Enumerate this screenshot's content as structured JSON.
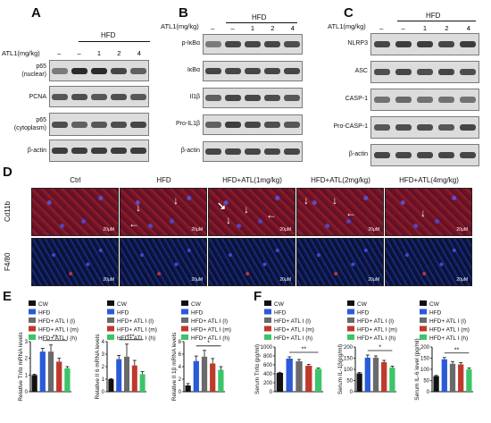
{
  "panels": {
    "a": "A",
    "b": "B",
    "c": "C",
    "d": "D",
    "e": "E",
    "f": "F"
  },
  "hfd": "HFD",
  "atl1_label": "ATL1(mg/kg)",
  "atl1_label_spaced": "ATL1(mg/kg)",
  "lanes": [
    "–",
    "–",
    "1",
    "2",
    "4"
  ],
  "blot_a": {
    "rows": [
      "p65\n(nuclear)",
      "PCNA",
      "p65\n(cytoplasm)",
      "β-actin"
    ],
    "row_1a": "p65",
    "row_1b": "(nuclear)",
    "row_2": "PCNA",
    "row_3a": "p65",
    "row_3b": "(cytoplasm)",
    "row_4": "β-actin"
  },
  "blot_b": {
    "rows": [
      "p-IκBα",
      "IκBα",
      "Il1β",
      "Pro-IL1β",
      "β-actin"
    ]
  },
  "blot_c": {
    "rows": [
      "NLRP3",
      "ASC",
      "CASP-1",
      "Pro-CASP-1",
      "β-actin"
    ]
  },
  "micro": {
    "cols": [
      "Ctrl",
      "HFD",
      "HFD+ATL(1mg/kg)",
      "HFD+ATL(2mg/kg)",
      "HFD+ATL(4mg/kg)"
    ],
    "rows": [
      "Cd11b",
      "F4/80"
    ],
    "scale": "20μM",
    "arrow_icon": "arrow-icon"
  },
  "legend": [
    "CW",
    "HFD",
    "HFD+ ATL I (l)",
    "HFD+ ATL I (m)",
    "HFD+ ATL I (h)"
  ],
  "colors": {
    "series": [
      "#111111",
      "#2a5bd7",
      "#6a6a6a",
      "#c0392b",
      "#3bc46a"
    ],
    "cd11b_bg": "#6b1828",
    "f480_bg": "#0e1a4a"
  },
  "chart_data": [
    {
      "type": "bar",
      "panel": "E",
      "ylabel": "Relative Tnfα mRNA levels",
      "ylim": [
        0,
        3
      ],
      "yticks": [
        "0",
        "1",
        "2",
        "3"
      ],
      "categories": [
        "CW",
        "HFD",
        "HFD+ ATL I (l)",
        "HFD+ ATL I (m)",
        "HFD+ ATL I (h)"
      ],
      "values": [
        1.0,
        2.4,
        2.4,
        1.8,
        1.4
      ],
      "errors": [
        0.05,
        0.2,
        0.4,
        0.2,
        0.1
      ],
      "significance": "**"
    },
    {
      "type": "bar",
      "panel": "E",
      "ylabel": "Relative Il 6 mRNA levels",
      "ylim": [
        0,
        4
      ],
      "yticks": [
        "0",
        "1",
        "2",
        "3",
        "4"
      ],
      "categories": [
        "CW",
        "HFD",
        "HFD+ ATL I (l)",
        "HFD+ ATL I (m)",
        "HFD+ ATL I (h)"
      ],
      "values": [
        1.0,
        2.6,
        2.8,
        2.1,
        1.4
      ],
      "errors": [
        0.05,
        0.3,
        1.0,
        0.4,
        0.2
      ],
      "significance": "***"
    },
    {
      "type": "bar",
      "panel": "E",
      "ylabel": "Relative Il 1β mRNA levels",
      "ylim": [
        0,
        8
      ],
      "yticks": [
        "0",
        "2",
        "4",
        "6",
        "8"
      ],
      "categories": [
        "CW",
        "HFD",
        "HFD+ ATL I (l)",
        "HFD+ ATL I (m)",
        "HFD+ ATL I (h)"
      ],
      "values": [
        1.0,
        4.9,
        5.6,
        4.5,
        3.5
      ],
      "errors": [
        0.3,
        0.8,
        1.0,
        0.8,
        0.5
      ],
      "significance": "*"
    },
    {
      "type": "bar",
      "panel": "F",
      "ylabel": "Serum Tnfα (pg/ml)",
      "ylim": [
        0,
        1000
      ],
      "yticks": [
        "0",
        "200",
        "400",
        "600",
        "800",
        "1000"
      ],
      "categories": [
        "CW",
        "HFD",
        "HFD+ ATL I (l)",
        "HFD+ ATL I (m)",
        "HFD+ ATL I (h)"
      ],
      "values": [
        420,
        740,
        680,
        580,
        510
      ],
      "errors": [
        15,
        40,
        40,
        30,
        20
      ],
      "significance": "**"
    },
    {
      "type": "bar",
      "panel": "F",
      "ylabel": "Serum IL-1β(pg/ml)",
      "ylim": [
        0,
        200
      ],
      "yticks": [
        "0",
        "50",
        "100",
        "150",
        "200"
      ],
      "categories": [
        "CW",
        "HFD",
        "HFD+ ATL I (l)",
        "HFD+ ATL I (m)",
        "HFD+ ATL I (h)"
      ],
      "values": [
        82,
        152,
        152,
        132,
        108
      ],
      "errors": [
        4,
        12,
        8,
        8,
        6
      ],
      "significance": "*"
    },
    {
      "type": "bar",
      "panel": "F",
      "ylabel": "Serum IL-6 level (pg/ml)",
      "ylim": [
        0,
        200
      ],
      "yticks": [
        "0",
        "50",
        "100",
        "150",
        "200"
      ],
      "categories": [
        "CW",
        "HFD",
        "HFD+ ATL I (l)",
        "HFD+ ATL I (m)",
        "HFD+ ATL I (h)"
      ],
      "values": [
        70,
        145,
        125,
        122,
        100
      ],
      "errors": [
        3,
        8,
        10,
        8,
        6
      ],
      "significance": "**"
    }
  ]
}
